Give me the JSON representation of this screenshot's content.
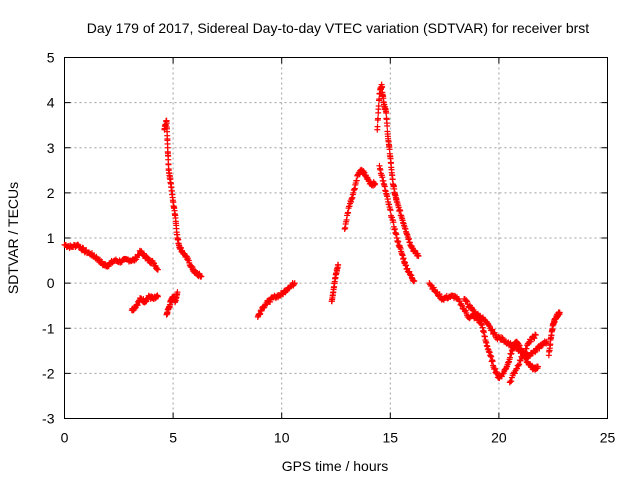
{
  "chart_data": {
    "type": "scatter",
    "title": "Day 179 of 2017, Sidereal Day-to-day VTEC variation (SDTVAR) for receiver brst",
    "xlabel": "GPS time / hours",
    "ylabel": "SDTVAR / TECUs",
    "xlim": [
      0,
      25
    ],
    "ylim": [
      -3,
      5
    ],
    "xticks": [
      0,
      5,
      10,
      15,
      20,
      25
    ],
    "yticks": [
      -3,
      -2,
      -1,
      0,
      1,
      2,
      3,
      4,
      5
    ],
    "grid": true,
    "marker": "+",
    "color": "#ff0000",
    "series": [
      {
        "name": "SDTVAR",
        "segments": [
          {
            "x": [
              0.0,
              0.3,
              0.6,
              0.9,
              1.2,
              1.5,
              1.8,
              2.0,
              2.3,
              2.6,
              2.9,
              3.2,
              3.5,
              3.7,
              3.9,
              4.1,
              4.3
            ],
            "y": [
              0.85,
              0.8,
              0.85,
              0.72,
              0.65,
              0.55,
              0.4,
              0.4,
              0.5,
              0.48,
              0.52,
              0.5,
              0.7,
              0.6,
              0.5,
              0.45,
              0.3
            ]
          },
          {
            "x": [
              3.1,
              3.3,
              3.5,
              3.7,
              3.9,
              4.1,
              4.3
            ],
            "y": [
              -0.6,
              -0.5,
              -0.35,
              -0.4,
              -0.3,
              -0.35,
              -0.3
            ]
          },
          {
            "x": [
              4.6,
              4.7,
              4.75,
              4.8,
              4.9,
              5.0,
              5.1,
              5.2,
              5.3,
              5.5,
              5.7,
              5.9,
              6.1,
              6.3
            ],
            "y": [
              3.4,
              3.6,
              3.0,
              2.5,
              2.2,
              1.8,
              1.5,
              1.0,
              0.8,
              0.65,
              0.5,
              0.3,
              0.2,
              0.15
            ]
          },
          {
            "x": [
              4.7,
              4.8,
              4.9,
              5.0,
              5.1,
              5.2
            ],
            "y": [
              -0.7,
              -0.55,
              -0.4,
              -0.3,
              -0.4,
              -0.2
            ]
          },
          {
            "x": [
              8.9,
              9.1,
              9.4,
              9.7,
              10.0,
              10.3,
              10.6
            ],
            "y": [
              -0.75,
              -0.55,
              -0.4,
              -0.3,
              -0.25,
              -0.1,
              0.0
            ]
          },
          {
            "x": [
              12.3,
              12.4,
              12.5,
              12.6
            ],
            "y": [
              -0.4,
              -0.1,
              0.2,
              0.4
            ]
          },
          {
            "x": [
              12.9,
              13.1,
              13.3,
              13.5,
              13.7,
              13.9,
              14.1,
              14.3
            ],
            "y": [
              1.2,
              1.7,
              2.0,
              2.4,
              2.5,
              2.35,
              2.2,
              2.2
            ]
          },
          {
            "x": [
              14.4,
              14.5,
              14.6,
              14.7,
              14.8,
              14.9,
              15.0,
              15.1,
              15.2,
              15.3,
              15.5,
              15.7,
              15.9,
              16.1,
              16.3
            ],
            "y": [
              3.4,
              4.2,
              4.4,
              4.0,
              3.8,
              3.2,
              2.8,
              2.3,
              2.0,
              1.8,
              1.5,
              1.2,
              0.9,
              0.7,
              0.6
            ]
          },
          {
            "x": [
              14.5,
              14.7,
              14.9,
              15.1,
              15.3,
              15.5,
              15.7,
              15.9,
              16.1
            ],
            "y": [
              2.6,
              2.2,
              1.8,
              1.4,
              1.0,
              0.7,
              0.4,
              0.2,
              0.05
            ]
          },
          {
            "x": [
              16.8,
              17.1,
              17.4,
              17.7,
              18.0,
              18.3,
              18.6,
              18.9,
              19.2,
              19.4,
              19.6,
              19.8,
              20.0,
              20.2,
              20.4,
              20.6,
              20.8,
              21.0,
              21.2,
              21.4,
              21.6,
              21.8
            ],
            "y": [
              0.0,
              -0.2,
              -0.35,
              -0.3,
              -0.3,
              -0.5,
              -0.75,
              -0.75,
              -0.9,
              -1.3,
              -1.6,
              -1.9,
              -2.1,
              -2.0,
              -1.8,
              -1.5,
              -1.3,
              -1.45,
              -1.65,
              -1.8,
              -1.9,
              -1.85
            ]
          },
          {
            "x": [
              18.4,
              18.7,
              19.0,
              19.3,
              19.6,
              19.9,
              20.2,
              20.5,
              20.8,
              21.1,
              21.4,
              21.7,
              22.0,
              22.2
            ],
            "y": [
              -0.35,
              -0.55,
              -0.7,
              -0.8,
              -1.0,
              -1.2,
              -1.25,
              -1.35,
              -1.45,
              -1.55,
              -1.6,
              -1.5,
              -1.35,
              -1.3
            ]
          },
          {
            "x": [
              20.5,
              20.8,
              21.1,
              21.4,
              21.7
            ],
            "y": [
              -2.2,
              -1.9,
              -1.6,
              -1.3,
              -1.15
            ]
          },
          {
            "x": [
              22.3,
              22.4,
              22.5,
              22.6,
              22.7,
              22.8
            ],
            "y": [
              -1.6,
              -1.2,
              -0.9,
              -0.8,
              -0.7,
              -0.65
            ]
          }
        ]
      }
    ]
  }
}
